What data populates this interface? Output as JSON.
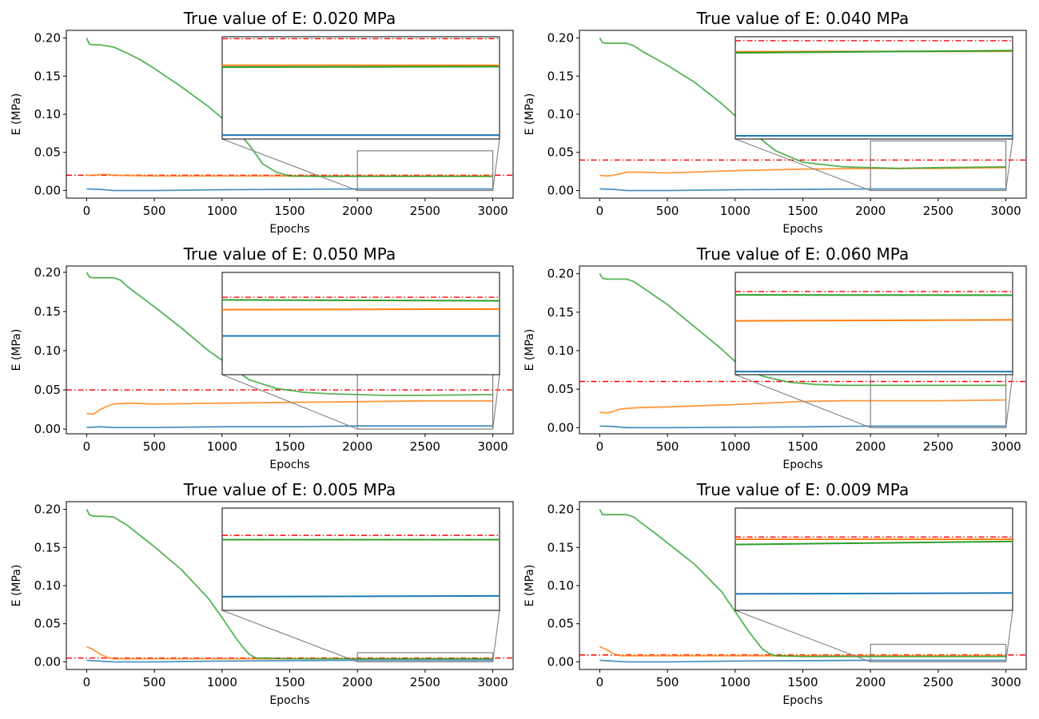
{
  "figure": {
    "xlabel": "Epochs",
    "ylabel": "E  (MPa)"
  },
  "colors": {
    "blue": "#1f77b4",
    "orange": "#ff7f0e",
    "green": "#2ca02c",
    "ref": "#ff0000",
    "zoom_box": "#808080"
  },
  "chart_data": [
    {
      "type": "line",
      "title": "True value of E: 0.020 MPa",
      "xlabel": "Epochs",
      "ylabel": "E  (MPa)",
      "xlim": [
        -150,
        3150
      ],
      "ylim": [
        -0.01,
        0.21
      ],
      "xticks": [
        0,
        500,
        1000,
        1500,
        2000,
        2500,
        3000
      ],
      "yticks": [
        0.0,
        0.05,
        0.1,
        0.15,
        0.2
      ],
      "reference": 0.02,
      "series": [
        {
          "name": "blue",
          "color": "#1f77b4",
          "x": [
            0,
            100,
            200,
            500,
            1000,
            1500,
            2000,
            2500,
            3000
          ],
          "y": [
            0.002,
            0.0015,
            0.0,
            0.0,
            0.001,
            0.0015,
            0.002,
            0.002,
            0.002
          ]
        },
        {
          "name": "orange",
          "color": "#ff7f0e",
          "x": [
            0,
            50,
            100,
            150,
            200,
            500,
            1000,
            1500,
            2000,
            2500,
            3000
          ],
          "y": [
            0.02,
            0.02,
            0.021,
            0.021,
            0.02,
            0.019,
            0.019,
            0.019,
            0.019,
            0.019,
            0.019
          ]
        },
        {
          "name": "green",
          "color": "#2ca02c",
          "x": [
            0,
            20,
            50,
            100,
            200,
            300,
            400,
            500,
            700,
            900,
            1000,
            1100,
            1200,
            1300,
            1400,
            1500,
            1700,
            2000,
            2500,
            3000
          ],
          "y": [
            0.2,
            0.192,
            0.191,
            0.191,
            0.188,
            0.18,
            0.171,
            0.16,
            0.136,
            0.11,
            0.095,
            0.08,
            0.06,
            0.035,
            0.024,
            0.019,
            0.0185,
            0.0185,
            0.0185,
            0.0185
          ]
        }
      ],
      "inset": {
        "x_range": [
          2000,
          3000
        ],
        "y_range": [
          0.0,
          0.052
        ],
        "lines": [
          {
            "color": "#ff0000",
            "style": "dashdot",
            "y": [
              0.051,
              0.051
            ]
          },
          {
            "color": "#ff7f0e",
            "style": "solid",
            "y": [
              0.0375,
              0.0375
            ]
          },
          {
            "color": "#2ca02c",
            "style": "solid",
            "y": [
              0.0365,
              0.0368
            ]
          },
          {
            "color": "#1f77b4",
            "style": "solid",
            "y": [
              0.002,
              0.002
            ]
          }
        ]
      }
    },
    {
      "type": "line",
      "title": "True value of E: 0.040 MPa",
      "xlabel": "Epochs",
      "ylabel": "E  (MPa)",
      "xlim": [
        -150,
        3150
      ],
      "ylim": [
        -0.01,
        0.21
      ],
      "xticks": [
        0,
        500,
        1000,
        1500,
        2000,
        2500,
        3000
      ],
      "yticks": [
        0.0,
        0.05,
        0.1,
        0.15,
        0.2
      ],
      "reference": 0.04,
      "series": [
        {
          "name": "blue",
          "color": "#1f77b4",
          "x": [
            0,
            100,
            200,
            500,
            1000,
            1500,
            2000,
            2500,
            3000
          ],
          "y": [
            0.002,
            0.0015,
            0.0,
            0.0,
            0.001,
            0.0015,
            0.002,
            0.002,
            0.002
          ]
        },
        {
          "name": "orange",
          "color": "#ff7f0e",
          "x": [
            0,
            50,
            100,
            150,
            200,
            300,
            500,
            1000,
            1500,
            2000,
            2500,
            3000
          ],
          "y": [
            0.02,
            0.019,
            0.02,
            0.022,
            0.024,
            0.024,
            0.023,
            0.026,
            0.028,
            0.029,
            0.029,
            0.03
          ]
        },
        {
          "name": "green",
          "color": "#2ca02c",
          "x": [
            0,
            20,
            50,
            100,
            200,
            250,
            300,
            400,
            500,
            700,
            900,
            1000,
            1100,
            1200,
            1300,
            1500,
            1800,
            2000,
            2200,
            2500,
            3000
          ],
          "y": [
            0.2,
            0.194,
            0.193,
            0.193,
            0.193,
            0.19,
            0.184,
            0.174,
            0.164,
            0.142,
            0.114,
            0.098,
            0.082,
            0.066,
            0.052,
            0.037,
            0.031,
            0.03,
            0.029,
            0.03,
            0.031
          ]
        }
      ],
      "inset": {
        "x_range": [
          2000,
          3000
        ],
        "y_range": [
          0.0,
          0.065
        ],
        "lines": [
          {
            "color": "#ff0000",
            "style": "dashdot",
            "y": [
              0.0625,
              0.0625
            ]
          },
          {
            "color": "#ff7f0e",
            "style": "solid",
            "y": [
              0.0555,
              0.0558
            ]
          },
          {
            "color": "#2ca02c",
            "style": "solid",
            "y": [
              0.0548,
              0.0562
            ]
          },
          {
            "color": "#1f77b4",
            "style": "solid",
            "y": [
              0.002,
              0.002
            ]
          }
        ]
      }
    },
    {
      "type": "line",
      "title": "True value of E: 0.050 MPa",
      "xlabel": "Epochs",
      "ylabel": "E  (MPa)",
      "xlim": [
        -150,
        3150
      ],
      "ylim": [
        -0.006,
        0.208
      ],
      "xticks": [
        0,
        500,
        1000,
        1500,
        2000,
        2500,
        3000
      ],
      "yticks": [
        0.0,
        0.05,
        0.1,
        0.15,
        0.2
      ],
      "reference": 0.05,
      "series": [
        {
          "name": "blue",
          "color": "#1f77b4",
          "x": [
            0,
            100,
            200,
            500,
            1000,
            1500,
            2000,
            2500,
            3000
          ],
          "y": [
            0.002,
            0.003,
            0.002,
            0.002,
            0.003,
            0.003,
            0.004,
            0.004,
            0.004
          ]
        },
        {
          "name": "orange",
          "color": "#ff7f0e",
          "x": [
            0,
            50,
            100,
            150,
            200,
            300,
            500,
            1000,
            1500,
            2000,
            2500,
            3000
          ],
          "y": [
            0.02,
            0.019,
            0.025,
            0.029,
            0.032,
            0.033,
            0.032,
            0.033,
            0.034,
            0.035,
            0.036,
            0.036
          ]
        },
        {
          "name": "green",
          "color": "#2ca02c",
          "x": [
            0,
            20,
            50,
            100,
            200,
            250,
            300,
            400,
            500,
            700,
            900,
            1000,
            1100,
            1200,
            1400,
            1600,
            1800,
            2000,
            2200,
            2500,
            3000
          ],
          "y": [
            0.2,
            0.194,
            0.193,
            0.193,
            0.193,
            0.19,
            0.182,
            0.169,
            0.156,
            0.129,
            0.1,
            0.088,
            0.075,
            0.063,
            0.052,
            0.047,
            0.045,
            0.044,
            0.043,
            0.043,
            0.044
          ]
        }
      ],
      "inset": {
        "x_range": [
          2000,
          3000
        ],
        "y_range": [
          0.0,
          0.07
        ],
        "lines": [
          {
            "color": "#ff0000",
            "style": "dashdot",
            "y": [
              0.053,
              0.053
            ]
          },
          {
            "color": "#2ca02c",
            "style": "solid",
            "y": [
              0.0512,
              0.0506
            ]
          },
          {
            "color": "#ff7f0e",
            "style": "solid",
            "y": [
              0.0445,
              0.0449
            ]
          },
          {
            "color": "#1f77b4",
            "style": "solid",
            "y": [
              0.0265,
              0.0265
            ]
          }
        ]
      }
    },
    {
      "type": "line",
      "title": "True value of E: 0.060 MPa",
      "xlabel": "Epochs",
      "ylabel": "E  (MPa)",
      "xlim": [
        -150,
        3150
      ],
      "ylim": [
        -0.008,
        0.21
      ],
      "xticks": [
        0,
        500,
        1000,
        1500,
        2000,
        2500,
        3000
      ],
      "yticks": [
        0.0,
        0.05,
        0.1,
        0.15,
        0.2
      ],
      "reference": 0.06,
      "series": [
        {
          "name": "blue",
          "color": "#1f77b4",
          "x": [
            0,
            100,
            200,
            500,
            1000,
            1500,
            2000,
            2500,
            3000
          ],
          "y": [
            0.002,
            0.0015,
            0.0,
            0.0,
            0.0005,
            0.001,
            0.002,
            0.002,
            0.002
          ]
        },
        {
          "name": "orange",
          "color": "#ff7f0e",
          "x": [
            0,
            50,
            100,
            150,
            200,
            300,
            500,
            1000,
            1500,
            1800,
            2000,
            2500,
            3000
          ],
          "y": [
            0.02,
            0.019,
            0.021,
            0.024,
            0.025,
            0.026,
            0.027,
            0.03,
            0.034,
            0.035,
            0.035,
            0.035,
            0.036
          ]
        },
        {
          "name": "green",
          "color": "#2ca02c",
          "x": [
            0,
            20,
            50,
            100,
            200,
            250,
            300,
            400,
            500,
            700,
            900,
            1000,
            1100,
            1200,
            1400,
            1600,
            1800,
            2000,
            2500,
            3000
          ],
          "y": [
            0.2,
            0.194,
            0.193,
            0.193,
            0.193,
            0.19,
            0.184,
            0.172,
            0.16,
            0.131,
            0.102,
            0.086,
            0.075,
            0.067,
            0.059,
            0.056,
            0.055,
            0.055,
            0.055,
            0.055
          ]
        }
      ],
      "inset": {
        "x_range": [
          2000,
          3000
        ],
        "y_range": [
          0.0,
          0.075
        ],
        "lines": [
          {
            "color": "#ff0000",
            "style": "dashdot",
            "y": [
              0.061,
              0.061
            ]
          },
          {
            "color": "#2ca02c",
            "style": "solid",
            "y": [
              0.0585,
              0.0583
            ]
          },
          {
            "color": "#ff7f0e",
            "style": "solid",
            "y": [
              0.0395,
              0.0402
            ]
          },
          {
            "color": "#1f77b4",
            "style": "solid",
            "y": [
              0.0023,
              0.0023
            ]
          }
        ]
      }
    },
    {
      "type": "line",
      "title": "True value of E: 0.005 MPa",
      "xlabel": "Epochs",
      "ylabel": "E  (MPa)",
      "xlim": [
        -150,
        3150
      ],
      "ylim": [
        -0.01,
        0.21
      ],
      "xticks": [
        0,
        500,
        1000,
        1500,
        2000,
        2500,
        3000
      ],
      "yticks": [
        0.0,
        0.05,
        0.1,
        0.15,
        0.2
      ],
      "reference": 0.005,
      "series": [
        {
          "name": "blue",
          "color": "#1f77b4",
          "x": [
            0,
            100,
            200,
            500,
            1000,
            1500,
            2000,
            2500,
            3000
          ],
          "y": [
            0.002,
            0.001,
            0.0,
            0.0,
            0.001,
            0.0015,
            0.002,
            0.002,
            0.002
          ]
        },
        {
          "name": "orange",
          "color": "#ff7f0e",
          "x": [
            0,
            50,
            100,
            150,
            200,
            300,
            500,
            1000,
            1500,
            2000,
            2500,
            3000
          ],
          "y": [
            0.02,
            0.016,
            0.01,
            0.006,
            0.004,
            0.004,
            0.004,
            0.004,
            0.004,
            0.004,
            0.004,
            0.004
          ]
        },
        {
          "name": "green",
          "color": "#2ca02c",
          "x": [
            0,
            20,
            50,
            100,
            200,
            300,
            400,
            500,
            700,
            900,
            1000,
            1050,
            1100,
            1150,
            1200,
            1250,
            1300,
            1500,
            2000,
            2500,
            3000
          ],
          "y": [
            0.2,
            0.193,
            0.191,
            0.191,
            0.19,
            0.179,
            0.165,
            0.151,
            0.121,
            0.083,
            0.058,
            0.045,
            0.032,
            0.02,
            0.01,
            0.005,
            0.005,
            0.004,
            0.004,
            0.004,
            0.004
          ]
        }
      ],
      "inset": {
        "x_range": [
          2000,
          3000
        ],
        "y_range": [
          0.0,
          0.012
        ],
        "lines": [
          {
            "color": "#ff0000",
            "style": "dashdot",
            "y": [
              0.0088,
              0.0088
            ]
          },
          {
            "color": "#2ca02c",
            "style": "solid",
            "y": [
              0.0083,
              0.0083
            ]
          },
          {
            "color": "#1f77b4",
            "style": "solid",
            "y": [
              0.0016,
              0.0017
            ]
          }
        ]
      }
    },
    {
      "type": "line",
      "title": "True value of E: 0.009 MPa",
      "xlabel": "Epochs",
      "ylabel": "E  (MPa)",
      "xlim": [
        -150,
        3150
      ],
      "ylim": [
        -0.01,
        0.21
      ],
      "xticks": [
        0,
        500,
        1000,
        1500,
        2000,
        2500,
        3000
      ],
      "yticks": [
        0.0,
        0.05,
        0.1,
        0.15,
        0.2
      ],
      "reference": 0.009,
      "series": [
        {
          "name": "blue",
          "color": "#1f77b4",
          "x": [
            0,
            100,
            200,
            500,
            1000,
            1500,
            2000,
            2500,
            3000
          ],
          "y": [
            0.002,
            0.001,
            0.0,
            0.0,
            0.001,
            0.0015,
            0.002,
            0.002,
            0.002
          ]
        },
        {
          "name": "orange",
          "color": "#ff7f0e",
          "x": [
            0,
            50,
            100,
            150,
            200,
            300,
            500,
            1000,
            1500,
            2000,
            2500,
            3000
          ],
          "y": [
            0.02,
            0.016,
            0.011,
            0.008,
            0.008,
            0.008,
            0.008,
            0.008,
            0.008,
            0.008,
            0.008,
            0.008
          ]
        },
        {
          "name": "green",
          "color": "#2ca02c",
          "x": [
            0,
            20,
            50,
            100,
            200,
            250,
            300,
            400,
            500,
            700,
            900,
            1000,
            1100,
            1200,
            1250,
            1300,
            1500,
            2000,
            2500,
            3000
          ],
          "y": [
            0.2,
            0.193,
            0.193,
            0.193,
            0.193,
            0.19,
            0.183,
            0.17,
            0.156,
            0.128,
            0.092,
            0.066,
            0.04,
            0.017,
            0.011,
            0.008,
            0.007,
            0.007,
            0.007,
            0.007
          ]
        }
      ],
      "inset": {
        "x_range": [
          2000,
          3000
        ],
        "y_range": [
          0.0,
          0.023
        ],
        "lines": [
          {
            "color": "#ff0000",
            "style": "dashdot",
            "y": [
              0.0165,
              0.0165
            ]
          },
          {
            "color": "#ff7f0e",
            "style": "solid",
            "y": [
              0.016,
              0.016
            ]
          },
          {
            "color": "#2ca02c",
            "style": "solid",
            "y": [
              0.0148,
              0.0155
            ]
          },
          {
            "color": "#1f77b4",
            "style": "solid",
            "y": [
              0.0037,
              0.0039
            ]
          }
        ]
      }
    }
  ]
}
